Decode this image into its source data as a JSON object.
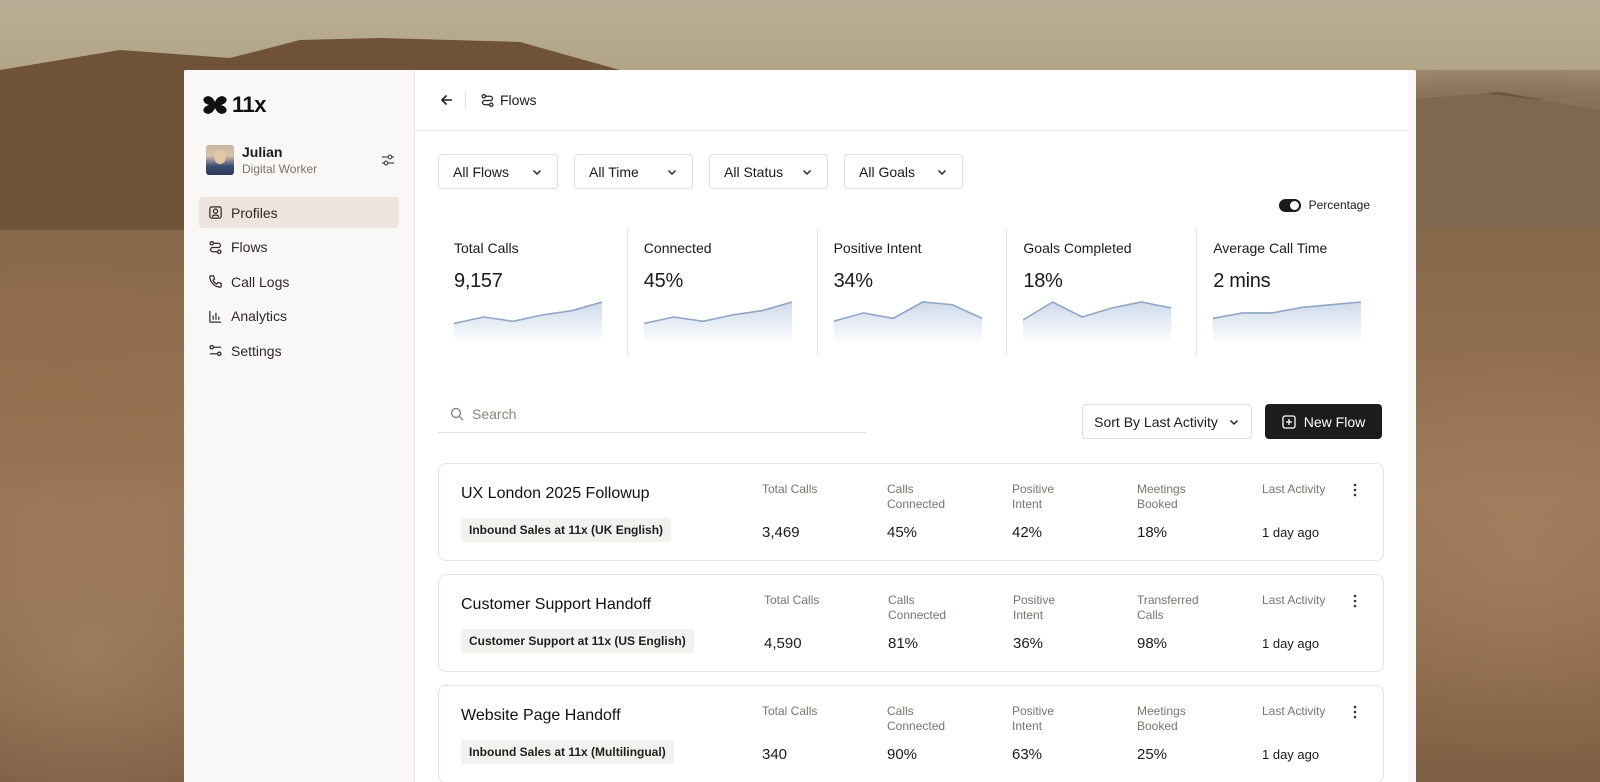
{
  "brand": {
    "name": "11x"
  },
  "user": {
    "name": "Julian",
    "role": "Digital Worker"
  },
  "sidebar": {
    "items": [
      {
        "label": "Profiles",
        "icon": "profile-icon",
        "active": true
      },
      {
        "label": "Flows",
        "icon": "flows-icon"
      },
      {
        "label": "Call Logs",
        "icon": "phone-icon"
      },
      {
        "label": "Analytics",
        "icon": "bar-chart-icon"
      },
      {
        "label": "Settings",
        "icon": "settings-sliders-icon"
      }
    ]
  },
  "header": {
    "breadcrumb": "Flows"
  },
  "filters": [
    {
      "label": "All Flows"
    },
    {
      "label": "All Time"
    },
    {
      "label": "All Status"
    },
    {
      "label": "All Goals"
    }
  ],
  "toggle": {
    "label": "Percentage",
    "on": true
  },
  "stats": [
    {
      "label": "Total Calls",
      "value": "9,157",
      "trend": [
        4,
        7,
        5,
        8,
        10,
        14
      ]
    },
    {
      "label": "Connected",
      "value": "45%",
      "trend": [
        4,
        7,
        5,
        8,
        10,
        14
      ]
    },
    {
      "label": "Positive Intent",
      "value": "34%",
      "trend": [
        4,
        7,
        5,
        11,
        10,
        5
      ]
    },
    {
      "label": "Goals Completed",
      "value": "18%",
      "trend": [
        4,
        10,
        5,
        8,
        10,
        8
      ]
    },
    {
      "label": "Average Call Time",
      "value": "2 mins",
      "trend": [
        5,
        7,
        7,
        9,
        10,
        11
      ]
    }
  ],
  "search": {
    "placeholder": "Search"
  },
  "sort": {
    "label": "Sort By Last Activity"
  },
  "new_flow": {
    "label": "New Flow"
  },
  "flows": [
    {
      "title": "UX London 2025 Followup",
      "tag": "Inbound Sales at 11x (UK English)",
      "metrics": [
        {
          "label": "Total Calls",
          "value": "3,469"
        },
        {
          "label": "Calls Connected",
          "value": "45%"
        },
        {
          "label": "Positive Intent",
          "value": "42%"
        },
        {
          "label": "Meetings Booked",
          "value": "18%"
        },
        {
          "label": "Last Activity",
          "value": "1 day ago"
        }
      ]
    },
    {
      "title": "Customer Support Handoff",
      "tag": "Customer Support at 11x (US English)",
      "metrics": [
        {
          "label": "Total Calls",
          "value": "4,590"
        },
        {
          "label": "Calls Connected",
          "value": "81%"
        },
        {
          "label": "Positive Intent",
          "value": "36%"
        },
        {
          "label": "Transferred Calls",
          "value": "98%"
        },
        {
          "label": "Last Activity",
          "value": "1 day ago"
        }
      ]
    },
    {
      "title": "Website Page Handoff",
      "tag": "Inbound Sales at 11x (Multilingual)",
      "metrics": [
        {
          "label": "Total Calls",
          "value": "340"
        },
        {
          "label": "Calls Connected",
          "value": "90%"
        },
        {
          "label": "Positive Intent",
          "value": "63%"
        },
        {
          "label": "Meetings Booked",
          "value": "25%"
        },
        {
          "label": "Last Activity",
          "value": "1 day ago"
        }
      ]
    }
  ],
  "colors": {
    "accent": "#1c1c1c",
    "active_nav": "#eee3dd",
    "spark_line": "#8fa6c6",
    "spark_fill": "#c9d6e8"
  }
}
